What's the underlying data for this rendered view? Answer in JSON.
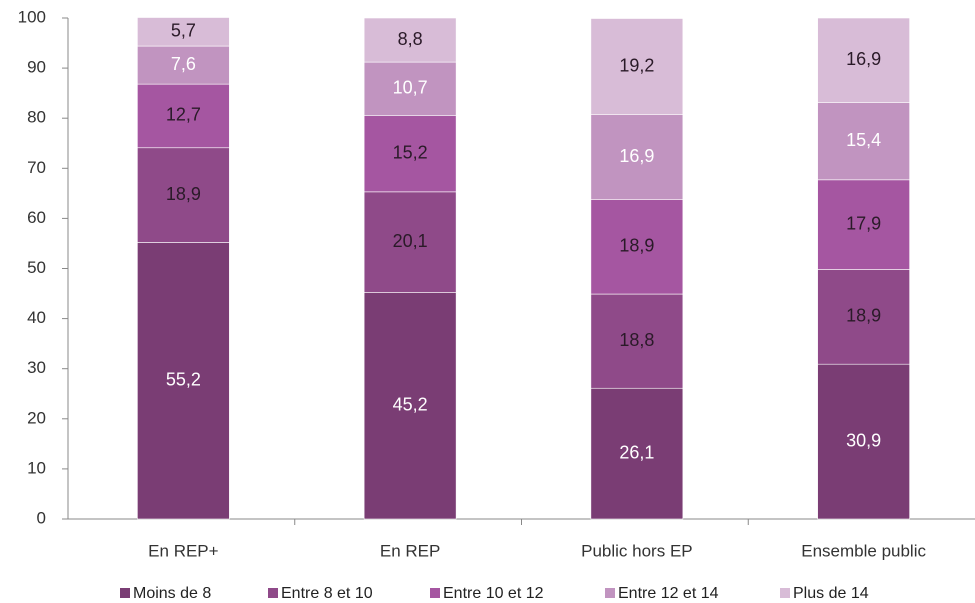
{
  "chart_data": {
    "type": "stacked_bar",
    "categories": [
      "En REP+",
      "En REP",
      "Public hors EP",
      "Ensemble public"
    ],
    "series": [
      {
        "name": "Moins de 8",
        "color": "#7a3d74",
        "label_color": "#ffffff",
        "values": [
          55.2,
          45.2,
          26.1,
          30.9
        ],
        "value_labels": [
          "55,2",
          "45,2",
          "26,1",
          "30,9"
        ]
      },
      {
        "name": "Entre 8 et 10",
        "color": "#8f4a89",
        "label_color": "#2a1a28",
        "values": [
          18.9,
          20.1,
          18.8,
          18.9
        ],
        "value_labels": [
          "18,9",
          "20,1",
          "18,8",
          "18,9"
        ]
      },
      {
        "name": "Entre 10 et 12",
        "color": "#a556a1",
        "label_color": "#2a1a28",
        "values": [
          12.7,
          15.2,
          18.9,
          17.9
        ],
        "value_labels": [
          "12,7",
          "15,2",
          "18,9",
          "17,9"
        ]
      },
      {
        "name": "Entre 12 et 14",
        "color": "#c194c0",
        "label_color": "#ffffff",
        "values": [
          7.6,
          10.7,
          16.9,
          15.4
        ],
        "value_labels": [
          "7,6",
          "10,7",
          "16,9",
          "15,4"
        ]
      },
      {
        "name": "Plus de 14",
        "color": "#d8bcd7",
        "label_color": "#2a1a28",
        "values": [
          5.7,
          8.8,
          19.2,
          16.9
        ],
        "value_labels": [
          "5,7",
          "8,8",
          "19,2",
          "16,9"
        ]
      }
    ],
    "ylim": [
      0,
      100
    ],
    "yticks": [
      0,
      10,
      20,
      30,
      40,
      50,
      60,
      70,
      80,
      90,
      100
    ],
    "grid": false,
    "legend": "bottom"
  }
}
